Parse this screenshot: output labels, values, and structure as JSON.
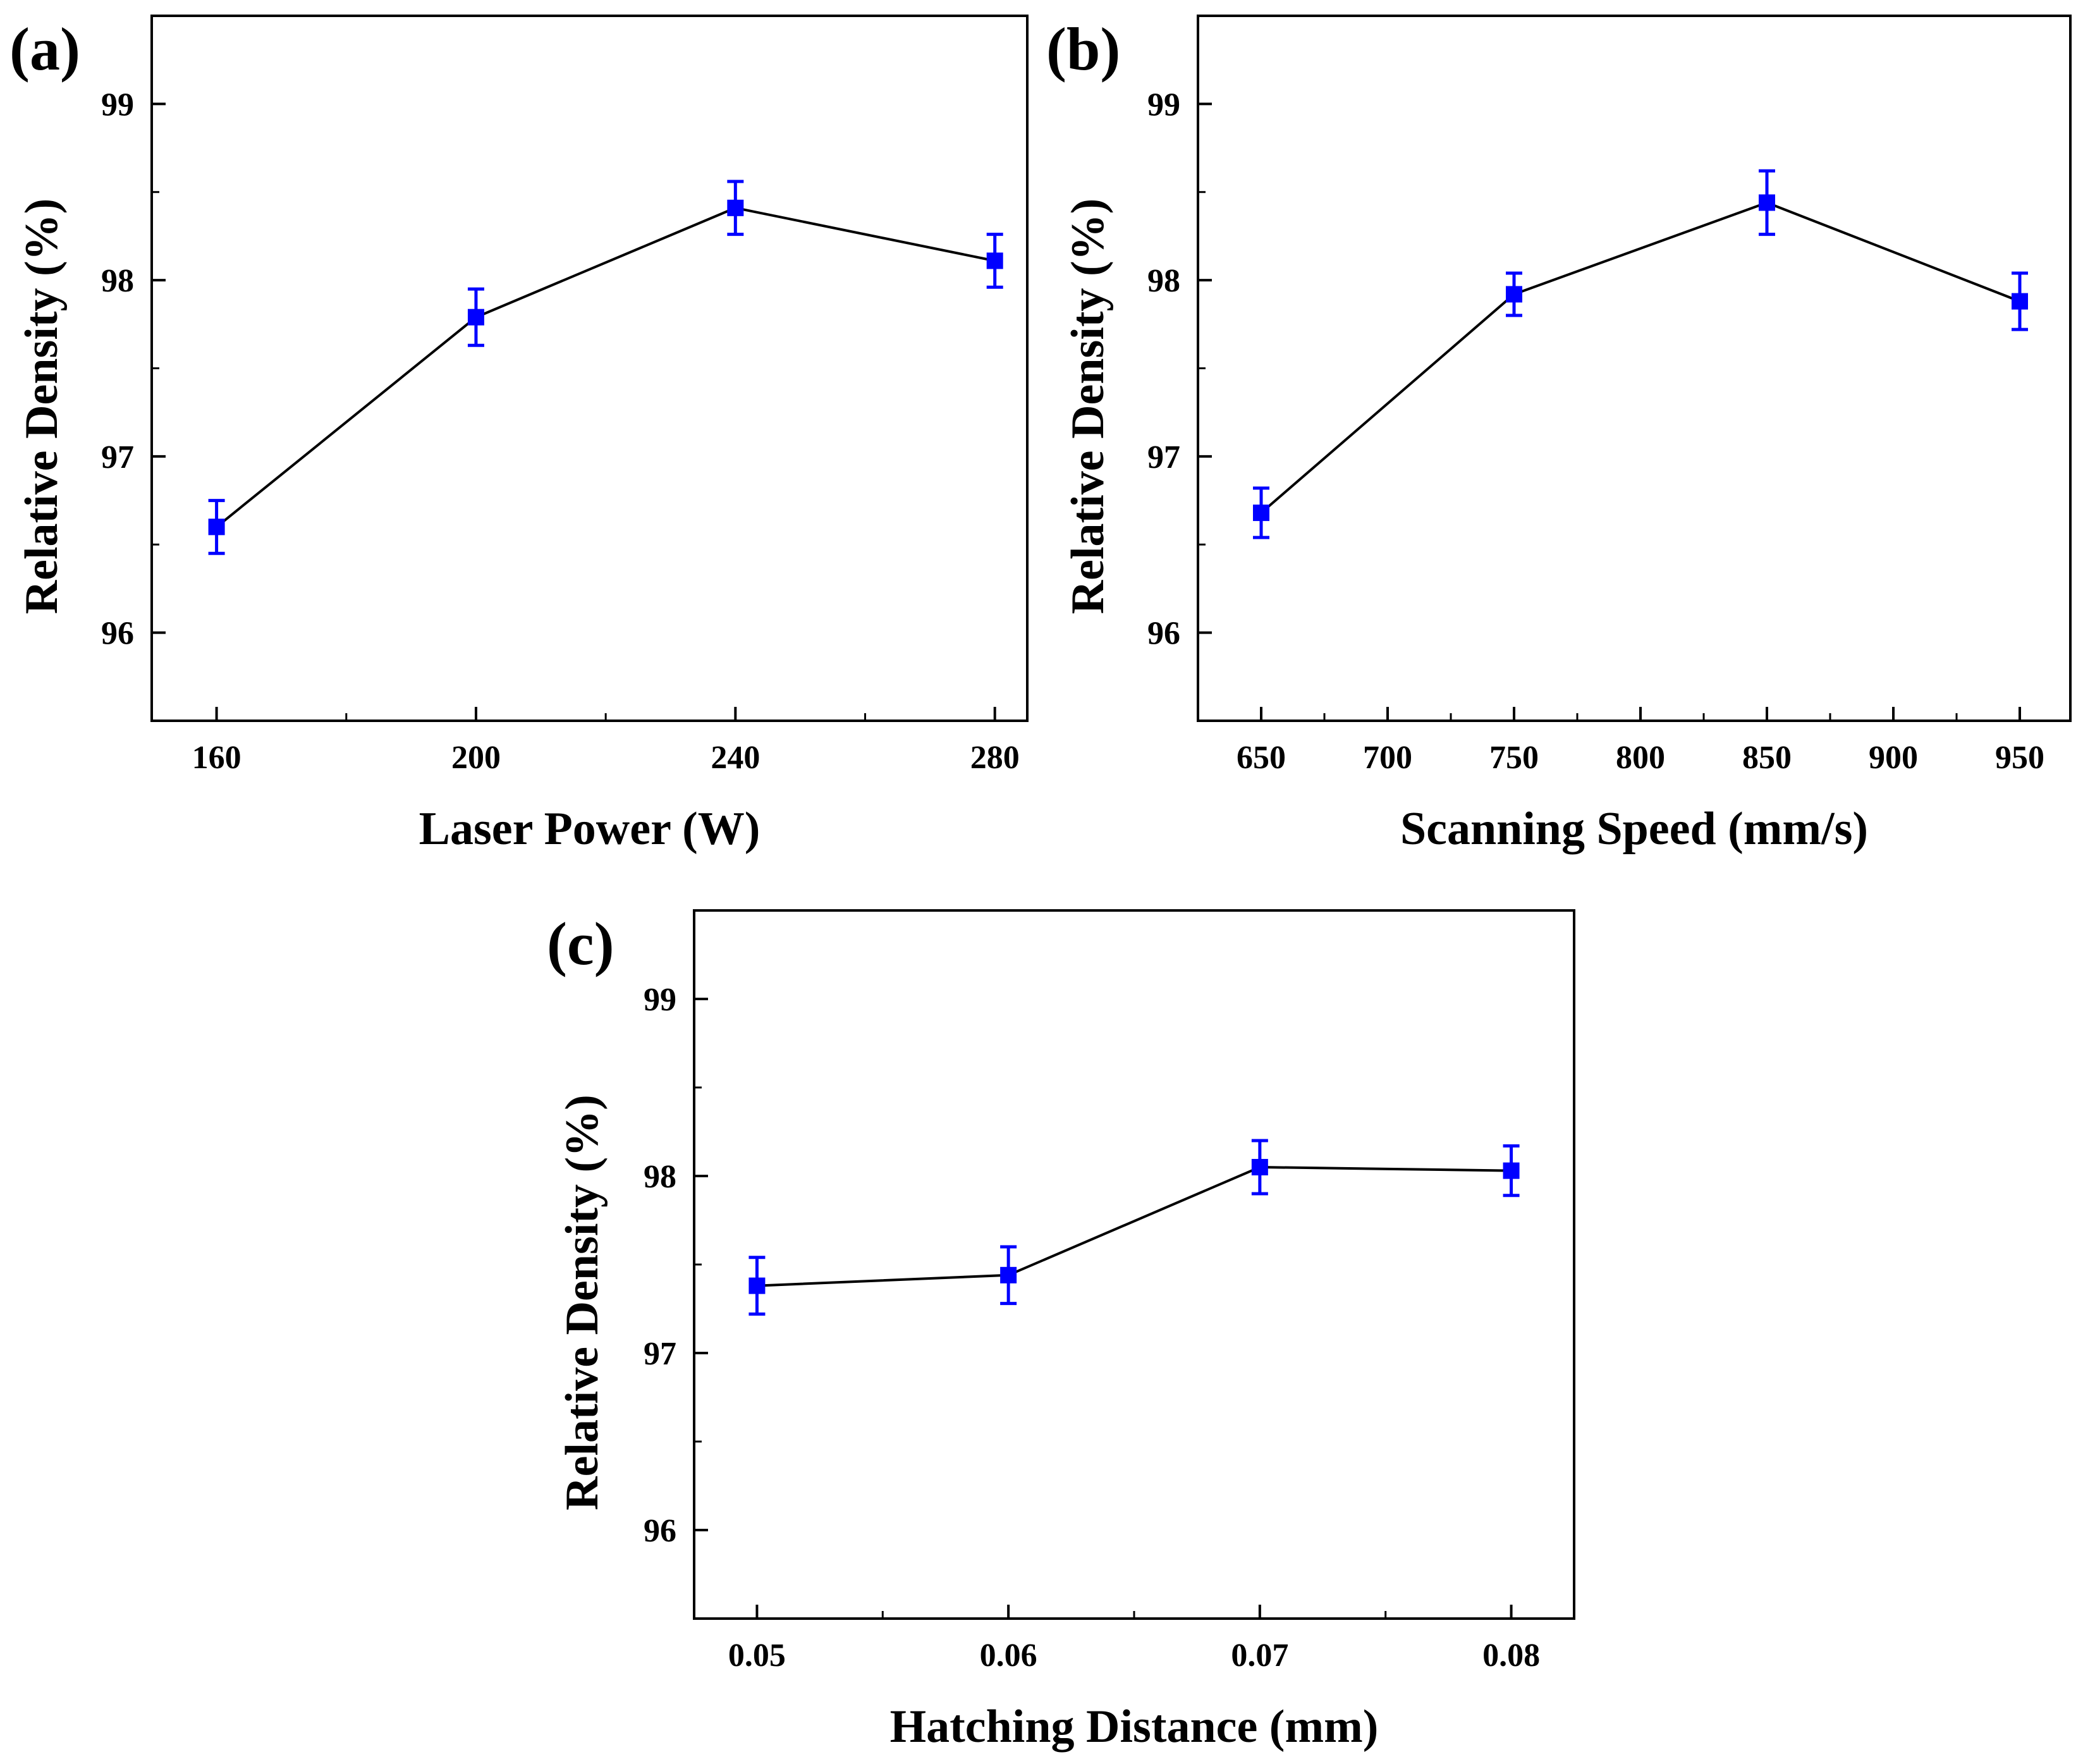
{
  "chart_data": [
    {
      "type": "line",
      "panel_label": "(a)",
      "xlabel": "Laser Power (W)",
      "ylabel": "Relative Density (%)",
      "x": [
        160,
        200,
        240,
        280
      ],
      "x_tick_labels": [
        "160",
        "200",
        "240",
        "280"
      ],
      "x_ticks": [
        160,
        200,
        240,
        280
      ],
      "x_minor_ticks": [
        180,
        220,
        260
      ],
      "xlim": [
        150,
        285
      ],
      "y": [
        96.6,
        97.79,
        98.41,
        98.11
      ],
      "y_err": [
        0.15,
        0.16,
        0.15,
        0.15
      ],
      "y_tick_labels": [
        "96",
        "97",
        "98",
        "99"
      ],
      "y_ticks": [
        96,
        97,
        98,
        99
      ],
      "y_minor_ticks": [
        96.5,
        97.5,
        98.5
      ],
      "ylim": [
        95.5,
        99.5
      ],
      "marker": "square",
      "marker_color": "#0000ff",
      "line_color": "#000000",
      "grid": false
    },
    {
      "type": "line",
      "panel_label": "(b)",
      "xlabel": "Scanning Speed (mm/s)",
      "ylabel": "Relative Density (%)",
      "x": [
        650,
        750,
        850,
        950
      ],
      "x_tick_labels": [
        "650",
        "700",
        "750",
        "800",
        "850",
        "900",
        "950"
      ],
      "x_ticks": [
        650,
        700,
        750,
        800,
        850,
        900,
        950
      ],
      "x_minor_ticks": [
        675,
        725,
        775,
        825,
        875,
        925
      ],
      "xlim": [
        625,
        970
      ],
      "y": [
        96.68,
        97.92,
        98.44,
        97.88
      ],
      "y_err": [
        0.14,
        0.12,
        0.18,
        0.16
      ],
      "y_tick_labels": [
        "96",
        "97",
        "98",
        "99"
      ],
      "y_ticks": [
        96,
        97,
        98,
        99
      ],
      "y_minor_ticks": [
        96.5,
        97.5,
        98.5
      ],
      "ylim": [
        95.5,
        99.5
      ],
      "marker": "square",
      "marker_color": "#0000ff",
      "line_color": "#000000",
      "grid": false
    },
    {
      "type": "line",
      "panel_label": "(c)",
      "xlabel": "Hatching Distance (mm)",
      "ylabel": "Relative Density (%)",
      "x": [
        0.05,
        0.06,
        0.07,
        0.08
      ],
      "x_tick_labels": [
        "0.05",
        "0.06",
        "0.07",
        "0.08"
      ],
      "x_ticks": [
        0.05,
        0.06,
        0.07,
        0.08
      ],
      "x_minor_ticks": [
        0.055,
        0.065,
        0.075
      ],
      "xlim": [
        0.0475,
        0.0825
      ],
      "y": [
        97.38,
        97.44,
        98.05,
        98.03
      ],
      "y_err": [
        0.16,
        0.16,
        0.15,
        0.14
      ],
      "y_tick_labels": [
        "96",
        "97",
        "98",
        "99"
      ],
      "y_ticks": [
        96,
        97,
        98,
        99
      ],
      "y_minor_ticks": [
        96.5,
        97.5,
        98.5
      ],
      "ylim": [
        95.5,
        99.5
      ],
      "marker": "square",
      "marker_color": "#0000ff",
      "line_color": "#000000",
      "grid": false
    }
  ]
}
